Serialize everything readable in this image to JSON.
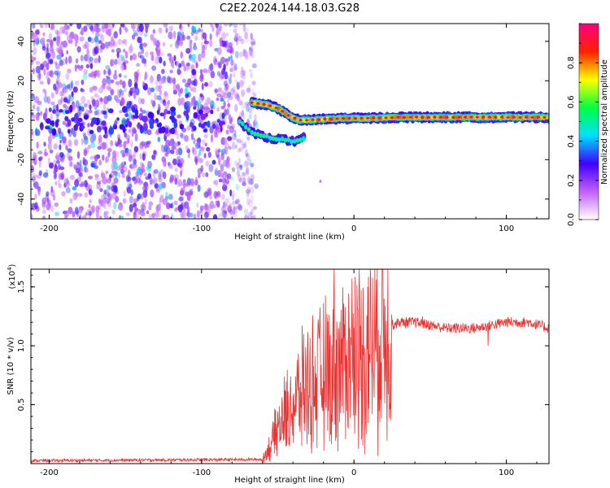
{
  "title": "C2E2.2024.144.18.03.G28",
  "chart_data": [
    {
      "type": "heatmap",
      "title": "C2E2.2024.144.18.03.G28",
      "xlabel": "Height of straight line (km)",
      "ylabel": "Frequency (Hz)",
      "xlim": [
        -212,
        128
      ],
      "ylim": [
        -50,
        49
      ],
      "xticks": [
        -200,
        -100,
        0,
        100
      ],
      "yticks": [
        -40,
        -20,
        0,
        20,
        40
      ],
      "xtick_labels": [
        "-200",
        "-100",
        "0",
        "100"
      ],
      "ytick_labels": [
        "-40",
        "-20",
        "0",
        "20",
        "40"
      ],
      "colorbar": {
        "label": "Normalized spectral amplitude",
        "range": [
          0,
          1
        ],
        "ticks": [
          0.0,
          0.2,
          0.4,
          0.6,
          0.8
        ],
        "tick_labels": [
          "0.0",
          "0.2",
          "0.4",
          "0.6",
          "0.8"
        ],
        "colors": [
          "#ffffff",
          "#c060ff",
          "#4000ff",
          "#00e0ff",
          "#00ff40",
          "#ffff00",
          "#ff2000",
          "#ff0080"
        ]
      },
      "features": {
        "noise_region_x": [
          -212,
          -70
        ],
        "noise_amplitude": 0.25,
        "carrier_track": [
          [
            -67,
            9
          ],
          [
            -58,
            8
          ],
          [
            -50,
            6
          ],
          [
            -42,
            2
          ],
          [
            -36,
            0
          ],
          [
            -30,
            0
          ],
          [
            -20,
            0.5
          ],
          [
            -5,
            1
          ],
          [
            10,
            1
          ],
          [
            30,
            1.5
          ],
          [
            60,
            1.5
          ],
          [
            90,
            1.5
          ],
          [
            128,
            1.5
          ]
        ],
        "mirror_track": [
          [
            -75,
            -1
          ],
          [
            -65,
            -7
          ],
          [
            -55,
            -9
          ],
          [
            -45,
            -10
          ],
          [
            -38,
            -11
          ],
          [
            -33,
            -9
          ]
        ]
      }
    },
    {
      "type": "line",
      "xlabel": "Height of straight line (km)",
      "ylabel": "SNR (10 * v/v)",
      "y_multiplier_label": "(x10",
      "y_multiplier_exp": "4",
      "xlim": [
        -212,
        128
      ],
      "ylim": [
        0,
        16500
      ],
      "xticks": [
        -200,
        -100,
        0,
        100
      ],
      "yticks": [
        5000,
        10000,
        15000
      ],
      "xtick_labels": [
        "-200",
        "-100",
        "0",
        "100"
      ],
      "ytick_labels": [
        "0.5",
        "1.0",
        "1.5"
      ],
      "color": "#ee3333",
      "envelope": [
        [
          -212,
          200
        ],
        [
          -60,
          300
        ],
        [
          -55,
          1500
        ],
        [
          -48,
          3500
        ],
        [
          -40,
          5000
        ],
        [
          -30,
          6500
        ],
        [
          -20,
          7500
        ],
        [
          -10,
          8000
        ],
        [
          0,
          9500
        ],
        [
          10,
          10000
        ],
        [
          20,
          11500
        ],
        [
          30,
          12000
        ],
        [
          40,
          12000
        ],
        [
          60,
          11500
        ],
        [
          80,
          11500
        ],
        [
          100,
          12000
        ],
        [
          115,
          12000
        ],
        [
          128,
          11500
        ]
      ],
      "spikes": [
        [
          -33,
          11000
        ],
        [
          -22,
          9500
        ],
        [
          -18,
          6000
        ],
        [
          -13,
          16500
        ],
        [
          -10,
          11500
        ],
        [
          -5,
          9000
        ],
        [
          8,
          2500
        ],
        [
          45,
          12500
        ],
        [
          88,
          10000
        ]
      ]
    }
  ]
}
